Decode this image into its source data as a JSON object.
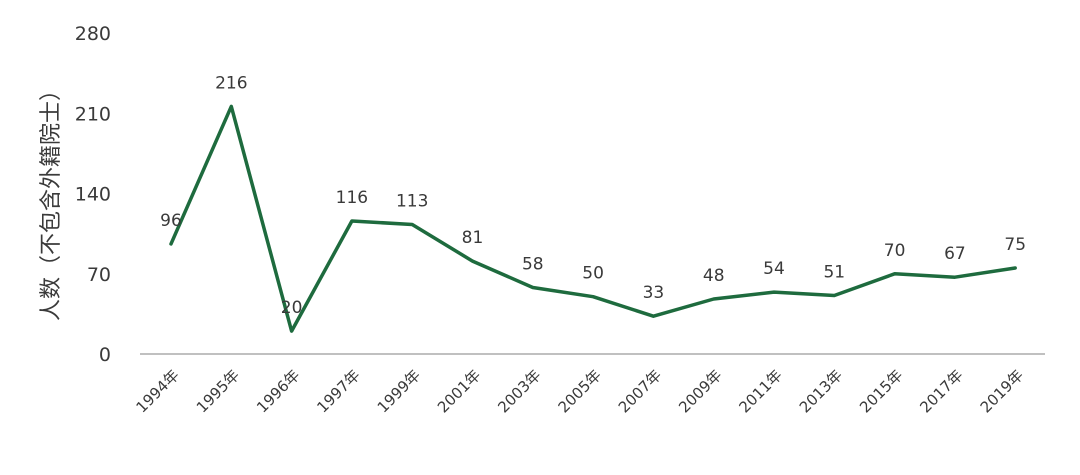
{
  "chart_data": {
    "type": "line",
    "title": "",
    "xlabel": "",
    "ylabel": "人数（不包含外籍院士）",
    "categories": [
      "1994年",
      "1995年",
      "1996年",
      "1997年",
      "1999年",
      "2001年",
      "2003年",
      "2005年",
      "2007年",
      "2009年",
      "2011年",
      "2013年",
      "2015年",
      "2017年",
      "2019年"
    ],
    "values": [
      96,
      216,
      20,
      116,
      113,
      81,
      58,
      50,
      33,
      48,
      54,
      51,
      70,
      67,
      75
    ],
    "yticks": [
      "0",
      "70",
      "140",
      "210",
      "280"
    ],
    "ylim": [
      0,
      280
    ],
    "grid": false,
    "legend": "none",
    "colors": {
      "line": "#1e6b3e",
      "text": "#3a3a3a",
      "axis": "#9a9a9a"
    }
  }
}
